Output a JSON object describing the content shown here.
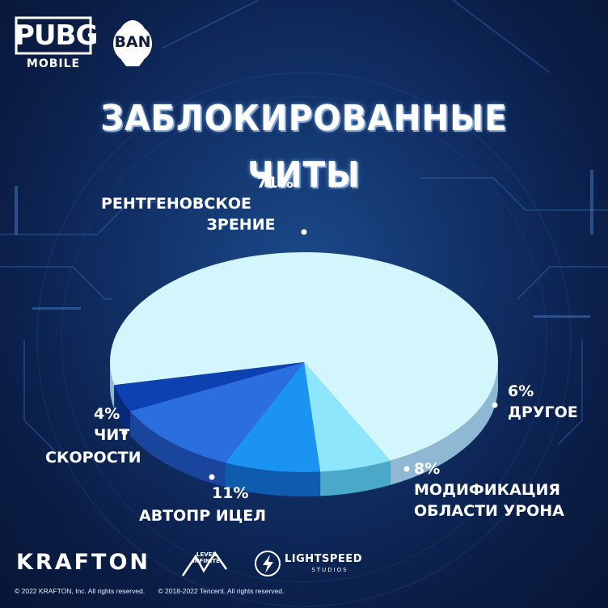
{
  "header": {
    "pubg_word": "PUBG",
    "pubg_sub": "MOBILE",
    "ban_badge": "BAN",
    "title": "ЗАБЛОКИРОВАННЫЕ ЧИТЫ"
  },
  "chart_data": {
    "type": "pie",
    "title": "ЗАБЛОКИРОВАННЫЕ ЧИТЫ",
    "slices": [
      {
        "percent_label": "71%",
        "label_lines": [
          "РЕНТГЕНОВСКОЕ",
          "ЗРЕНИЕ"
        ],
        "value": 71,
        "color": "#d3f6fd",
        "side_color": "#8fb8d4"
      },
      {
        "percent_label": "6%",
        "label_lines": [
          "ДРУГОЕ"
        ],
        "value": 6,
        "color": "#8de6fb",
        "side_color": "#4aa8c8"
      },
      {
        "percent_label": "8%",
        "label_lines": [
          "МОДИФИКАЦИЯ",
          "ОБЛАСТИ УРОНА"
        ],
        "value": 8,
        "color": "#1b93f2",
        "side_color": "#0f5cae"
      },
      {
        "percent_label": "11%",
        "label_lines": [
          "АВТОПР ИЦЕЛ"
        ],
        "value": 11,
        "color": "#2a6ee0",
        "side_color": "#1a459c"
      },
      {
        "percent_label": "4%",
        "label_lines": [
          "ЧИТ",
          "СКОРОСТИ"
        ],
        "value": 4,
        "color": "#0d40b0",
        "side_color": "#082a78"
      }
    ],
    "depth_color": "#16356e",
    "legend": "none"
  },
  "footer": {
    "krafton": "KRAFTON",
    "level_infinite": "LEVEL INFINITE",
    "lightspeed": "LIGHTSPEED",
    "lightspeed_sub": "STUDIOS",
    "copyright_1": "© 2022 KRAFTON, Inc. All rights reserved.",
    "copyright_2": "©  2018-2022 Tencent. All rights reserved."
  }
}
